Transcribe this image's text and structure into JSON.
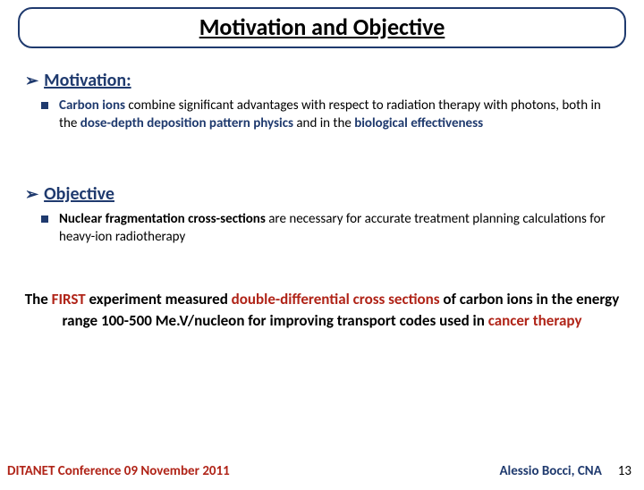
{
  "title": "Motivation and Objective",
  "motivation": {
    "heading": "Motivation:",
    "lead": "Carbon ions",
    "mid1": " combine significant advantages with respect to radiation therapy with photons, both in the ",
    "hl1": "dose-depth deposition pattern physics",
    "mid2": " and in the ",
    "hl2": "biological effectiveness"
  },
  "objective": {
    "heading": "Objective",
    "lead": "Nuclear fragmentation cross-sections",
    "rest": " are necessary for accurate treatment planning calculations for heavy-ion radiotherapy"
  },
  "summary": {
    "s1": "The ",
    "s2": "FIRST",
    "s3": " experiment measured ",
    "s4": "double-differential cross sections",
    "s5": " of carbon ions",
    "s6": " in the energy range ",
    "s7": "100-500 Me.V/nucleon",
    "s8": " for improving transport codes used in ",
    "s9": "cancer therapy"
  },
  "footer": {
    "left": "DITANET Conference 09 November 2011",
    "right": "Alessio Bocci, CNA",
    "page": "13"
  },
  "colors": {
    "blue": "#1f3a6e",
    "red": "#b02418"
  }
}
